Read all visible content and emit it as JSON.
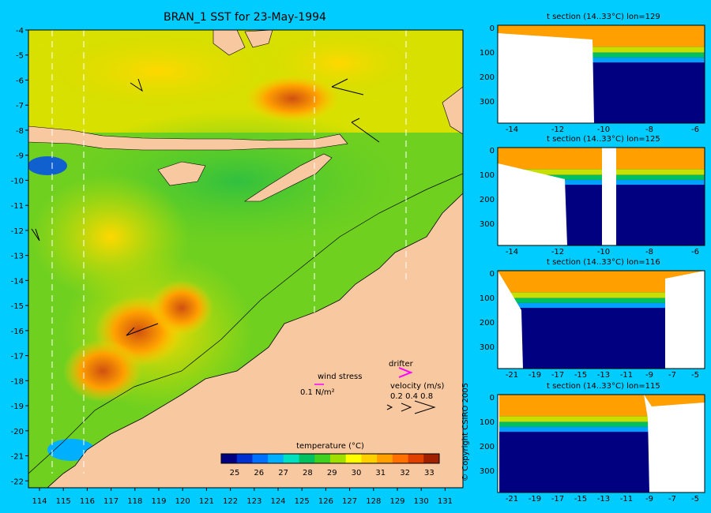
{
  "map": {
    "title": "BRAN_1 SST for 23-May-1994",
    "lat_ticks": [
      "-4",
      "-5",
      "-6",
      "-7",
      "-8",
      "-9",
      "-10",
      "-11",
      "-12",
      "-13",
      "-14",
      "-15",
      "-16",
      "-17",
      "-18",
      "-19",
      "-20",
      "-21",
      "-22"
    ],
    "lon_ticks": [
      "114",
      "115",
      "116",
      "117",
      "118",
      "119",
      "120",
      "121",
      "122",
      "123",
      "124",
      "125",
      "126",
      "127",
      "128",
      "129",
      "130",
      "131"
    ],
    "legend": {
      "wind_stress_label": "wind stress",
      "wind_stress_scale": "0.1 N/m²",
      "drifter_label": "drifter",
      "velocity_label": "velocity (m/s)",
      "velocity_values": "0.2 0.4 0.8"
    },
    "colorbar": {
      "label": "temperature (°C)",
      "ticks": [
        "25",
        "26",
        "27",
        "28",
        "29",
        "30",
        "31",
        "32",
        "33"
      ],
      "colors": [
        "#000080",
        "#0030d0",
        "#0070ff",
        "#00b0ff",
        "#00e0c0",
        "#00c060",
        "#40d020",
        "#a0e000",
        "#ffff00",
        "#ffd000",
        "#ffa000",
        "#ff7000",
        "#e04000",
        "#a02000"
      ]
    },
    "colors": {
      "land": "#f8c8a0",
      "background": "#00ccff"
    }
  },
  "sections": [
    {
      "title": "t section (14..33°C) lon=129",
      "x_ticks": [
        "-14",
        "-12",
        "-10",
        "-8",
        "-6"
      ],
      "y_ticks": [
        "0",
        "100",
        "200",
        "300"
      ]
    },
    {
      "title": "t section (14..33°C) lon=125",
      "x_ticks": [
        "-14",
        "-12",
        "-10",
        "-8",
        "-6"
      ],
      "y_ticks": [
        "0",
        "100",
        "200",
        "300"
      ]
    },
    {
      "title": "t section (14..33°C) lon=116",
      "x_ticks": [
        "-21",
        "-19",
        "-17",
        "-15",
        "-13",
        "-11",
        "-9",
        "-7",
        "-5"
      ],
      "y_ticks": [
        "0",
        "100",
        "200",
        "300"
      ]
    },
    {
      "title": "t section (14..33°C) lon=115",
      "x_ticks": [
        "-21",
        "-19",
        "-17",
        "-15",
        "-13",
        "-11",
        "-9",
        "-7",
        "-5"
      ],
      "y_ticks": [
        "0",
        "100",
        "200",
        "300"
      ]
    }
  ],
  "copyright": "© Copyright CSIRO 2005"
}
